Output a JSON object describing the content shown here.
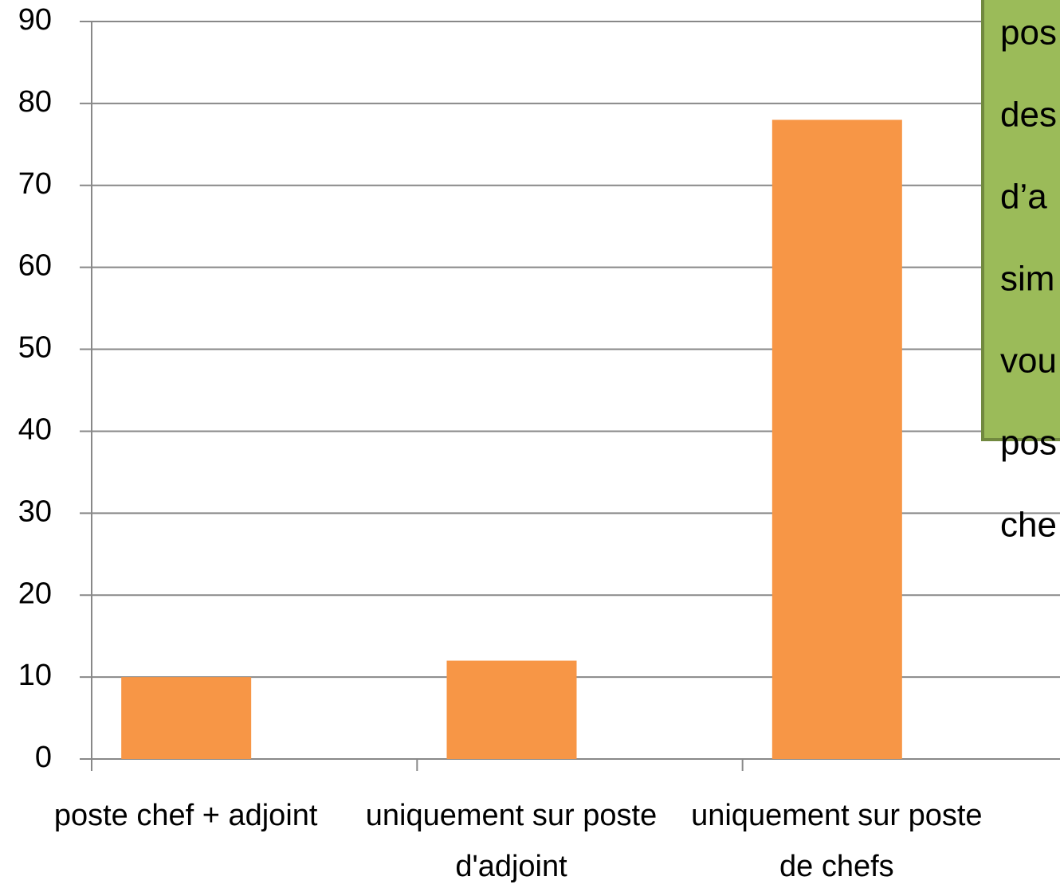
{
  "chart_data": {
    "type": "bar",
    "categories": [
      "poste chef + adjoint",
      "uniquement sur poste d'adjoint",
      "uniquement sur poste de chefs"
    ],
    "values": [
      10,
      12,
      78
    ],
    "color": "#f79646",
    "ylim": [
      0,
      90
    ],
    "yticks": [
      0,
      10,
      20,
      30,
      40,
      50,
      60,
      70,
      80,
      90
    ],
    "grid": true,
    "annotation": [
      "pos",
      "des",
      "d’a",
      "sim",
      "vou",
      "pos",
      "che"
    ]
  }
}
